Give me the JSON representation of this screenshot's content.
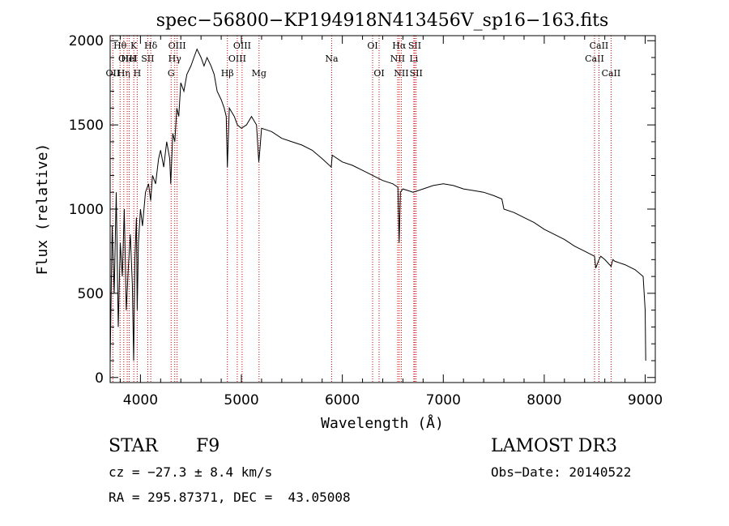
{
  "chart_data": {
    "type": "line",
    "title": "spec−56800−KP194918N413456V_sp16−163.fits",
    "xlabel": "Wavelength (Å)",
    "ylabel": "Flux (relative)",
    "xlim": [
      3700,
      9100
    ],
    "ylim": [
      -30,
      2030
    ],
    "xticks": [
      4000,
      5000,
      6000,
      7000,
      8000,
      9000
    ],
    "yticks": [
      0,
      500,
      1000,
      1500,
      2000
    ],
    "grid": false,
    "line_color": "#000000",
    "marker_color": "#cc0000",
    "series": [
      {
        "x": [
          3700,
          3720,
          3740,
          3760,
          3780,
          3800,
          3820,
          3840,
          3860,
          3880,
          3900,
          3920,
          3933,
          3945,
          3960,
          3968,
          3980,
          4000,
          4020,
          4050,
          4080,
          4101,
          4120,
          4150,
          4180,
          4200,
          4230,
          4260,
          4290,
          4300,
          4320,
          4340,
          4360,
          4380,
          4400,
          4430,
          4460,
          4500,
          4530,
          4560,
          4600,
          4630,
          4660,
          4700,
          4730,
          4760,
          4800,
          4830,
          4850,
          4861,
          4880,
          4900,
          4930,
          4960,
          5000,
          5050,
          5100,
          5150,
          5172,
          5183,
          5200,
          5250,
          5300,
          5400,
          5500,
          5600,
          5700,
          5800,
          5890,
          5900,
          6000,
          6100,
          6200,
          6300,
          6400,
          6500,
          6550,
          6563,
          6575,
          6600,
          6650,
          6700,
          6800,
          6900,
          7000,
          7100,
          7200,
          7300,
          7400,
          7500,
          7580,
          7600,
          7700,
          7800,
          7900,
          8000,
          8100,
          8200,
          8300,
          8400,
          8498,
          8510,
          8542,
          8560,
          8600,
          8662,
          8680,
          8700,
          8800,
          8900,
          8980,
          9000,
          9005
        ],
        "y": [
          100,
          900,
          500,
          1100,
          300,
          800,
          600,
          1000,
          400,
          650,
          850,
          550,
          100,
          700,
          950,
          400,
          800,
          1000,
          900,
          1100,
          1150,
          1050,
          1200,
          1150,
          1300,
          1350,
          1250,
          1400,
          1300,
          1150,
          1450,
          1400,
          1600,
          1550,
          1750,
          1700,
          1800,
          1850,
          1900,
          1950,
          1900,
          1850,
          1900,
          1850,
          1800,
          1700,
          1650,
          1600,
          1550,
          1250,
          1600,
          1580,
          1550,
          1500,
          1480,
          1500,
          1550,
          1500,
          1280,
          1350,
          1480,
          1470,
          1460,
          1420,
          1400,
          1380,
          1350,
          1300,
          1250,
          1320,
          1280,
          1260,
          1230,
          1200,
          1170,
          1150,
          1130,
          800,
          1100,
          1120,
          1110,
          1100,
          1120,
          1140,
          1150,
          1140,
          1120,
          1110,
          1100,
          1080,
          1060,
          1000,
          980,
          950,
          920,
          880,
          850,
          820,
          780,
          750,
          720,
          650,
          700,
          720,
          700,
          660,
          700,
          690,
          670,
          640,
          600,
          400,
          100
        ]
      }
    ],
    "lines": [
      {
        "label": "OII",
        "wl": 3727,
        "row": 3
      },
      {
        "label": "Hθ",
        "wl": 3798,
        "row": 1
      },
      {
        "label": "Hη",
        "wl": 3835,
        "row": 3
      },
      {
        "label": "OIII",
        "wl": 3869,
        "row": 2
      },
      {
        "label": "HeI",
        "wl": 3889,
        "row": 2
      },
      {
        "label": "K",
        "wl": 3934,
        "row": 1
      },
      {
        "label": "H",
        "wl": 3968,
        "row": 3
      },
      {
        "label": "SII",
        "wl": 4072,
        "row": 2
      },
      {
        "label": "Hδ",
        "wl": 4102,
        "row": 1
      },
      {
        "label": "G",
        "wl": 4304,
        "row": 3
      },
      {
        "label": "Hγ",
        "wl": 4340,
        "row": 2
      },
      {
        "label": "OIII",
        "wl": 4363,
        "row": 1
      },
      {
        "label": "Hβ",
        "wl": 4861,
        "row": 3
      },
      {
        "label": "OIII",
        "wl": 4959,
        "row": 2
      },
      {
        "label": "OIII",
        "wl": 5007,
        "row": 1
      },
      {
        "label": "Mg",
        "wl": 5175,
        "row": 3
      },
      {
        "label": "Na",
        "wl": 5894,
        "row": 2
      },
      {
        "label": "OI",
        "wl": 6300,
        "row": 1
      },
      {
        "label": "OI",
        "wl": 6364,
        "row": 3
      },
      {
        "label": "NII",
        "wl": 6548,
        "row": 2
      },
      {
        "label": "Hα",
        "wl": 6563,
        "row": 1
      },
      {
        "label": "NII",
        "wl": 6584,
        "row": 3
      },
      {
        "label": "Li",
        "wl": 6708,
        "row": 2
      },
      {
        "label": "SII",
        "wl": 6717,
        "row": 1
      },
      {
        "label": "SII",
        "wl": 6731,
        "row": 3
      },
      {
        "label": "CaII",
        "wl": 8498,
        "row": 2
      },
      {
        "label": "CaII",
        "wl": 8542,
        "row": 1
      },
      {
        "label": "CaII",
        "wl": 8662,
        "row": 3
      }
    ]
  },
  "info": {
    "object_class": "STAR",
    "subclass": "F9",
    "survey": "LAMOST DR3",
    "cz": "cz = −27.3 ± 8.4 km/s",
    "obs_date": "Obs−Date: 20140522",
    "coords": "RA = 295.87371, DEC =  43.05008"
  }
}
